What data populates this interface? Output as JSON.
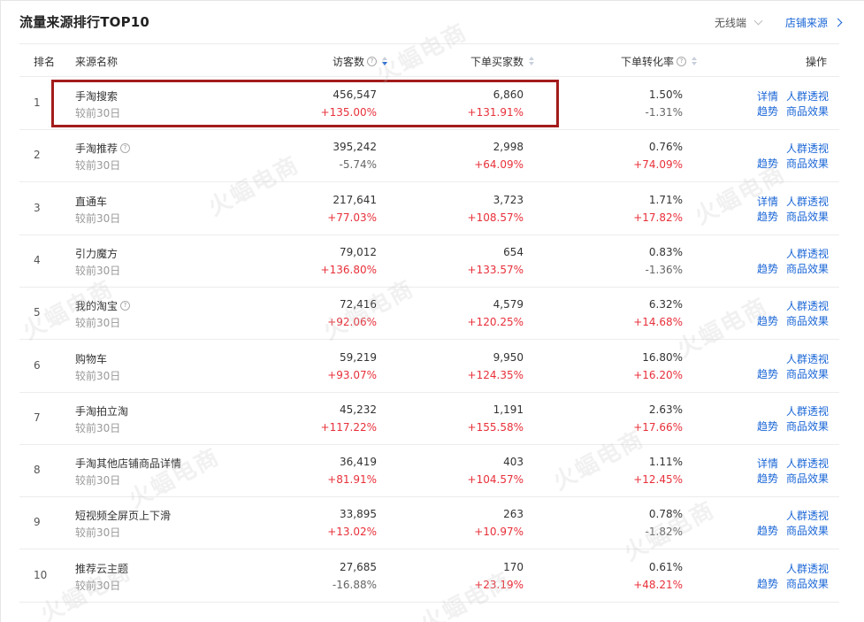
{
  "header": {
    "title": "流量来源排行TOP10",
    "terminal_label": "无线端",
    "shop_source_label": "店铺来源"
  },
  "columns": {
    "rank": "排名",
    "source": "来源名称",
    "visitors": "访客数",
    "buyers": "下单买家数",
    "conversion": "下单转化率",
    "actions": "操作"
  },
  "rows": [
    {
      "rank": "1",
      "name": "手淘搜索",
      "sub": "较前30日",
      "visitors": "456,547",
      "visitors_change": "+135.00%",
      "buyers": "6,860",
      "buyers_change": "+131.91%",
      "conv": "1.50%",
      "conv_change": "-1.31%",
      "a1": "详情",
      "a2": "人群透视",
      "a3": "趋势",
      "a4": "商品效果"
    },
    {
      "rank": "2",
      "name": "手淘推荐",
      "sub": "较前30日",
      "visitors": "395,242",
      "visitors_change": "-5.74%",
      "buyers": "2,998",
      "buyers_change": "+64.09%",
      "conv": "0.76%",
      "conv_change": "+74.09%",
      "a1": "",
      "a2": "人群透视",
      "a3": "趋势",
      "a4": "商品效果"
    },
    {
      "rank": "3",
      "name": "直通车",
      "sub": "较前30日",
      "visitors": "217,641",
      "visitors_change": "+77.03%",
      "buyers": "3,723",
      "buyers_change": "+108.57%",
      "conv": "1.71%",
      "conv_change": "+17.82%",
      "a1": "详情",
      "a2": "人群透视",
      "a3": "趋势",
      "a4": "商品效果"
    },
    {
      "rank": "4",
      "name": "引力魔方",
      "sub": "较前30日",
      "visitors": "79,012",
      "visitors_change": "+136.80%",
      "buyers": "654",
      "buyers_change": "+133.57%",
      "conv": "0.83%",
      "conv_change": "-1.36%",
      "a1": "",
      "a2": "人群透视",
      "a3": "趋势",
      "a4": "商品效果"
    },
    {
      "rank": "5",
      "name": "我的淘宝",
      "sub": "较前30日",
      "visitors": "72,416",
      "visitors_change": "+92.06%",
      "buyers": "4,579",
      "buyers_change": "+120.25%",
      "conv": "6.32%",
      "conv_change": "+14.68%",
      "a1": "",
      "a2": "人群透视",
      "a3": "趋势",
      "a4": "商品效果"
    },
    {
      "rank": "6",
      "name": "购物车",
      "sub": "较前30日",
      "visitors": "59,219",
      "visitors_change": "+93.07%",
      "buyers": "9,950",
      "buyers_change": "+124.35%",
      "conv": "16.80%",
      "conv_change": "+16.20%",
      "a1": "",
      "a2": "人群透视",
      "a3": "趋势",
      "a4": "商品效果"
    },
    {
      "rank": "7",
      "name": "手淘拍立淘",
      "sub": "较前30日",
      "visitors": "45,232",
      "visitors_change": "+117.22%",
      "buyers": "1,191",
      "buyers_change": "+155.58%",
      "conv": "2.63%",
      "conv_change": "+17.66%",
      "a1": "",
      "a2": "人群透视",
      "a3": "趋势",
      "a4": "商品效果"
    },
    {
      "rank": "8",
      "name": "手淘其他店铺商品详情",
      "sub": "较前30日",
      "visitors": "36,419",
      "visitors_change": "+81.91%",
      "buyers": "403",
      "buyers_change": "+104.57%",
      "conv": "1.11%",
      "conv_change": "+12.45%",
      "a1": "详情",
      "a2": "人群透视",
      "a3": "趋势",
      "a4": "商品效果"
    },
    {
      "rank": "9",
      "name": "短视频全屏页上下滑",
      "sub": "较前30日",
      "visitors": "33,895",
      "visitors_change": "+13.02%",
      "buyers": "263",
      "buyers_change": "+10.97%",
      "conv": "0.78%",
      "conv_change": "-1.82%",
      "a1": "",
      "a2": "人群透视",
      "a3": "趋势",
      "a4": "商品效果"
    },
    {
      "rank": "10",
      "name": "推荐云主题",
      "sub": "较前30日",
      "visitors": "27,685",
      "visitors_change": "-16.88%",
      "buyers": "170",
      "buyers_change": "+23.19%",
      "conv": "0.61%",
      "conv_change": "+48.21%",
      "a1": "",
      "a2": "人群透视",
      "a3": "趋势",
      "a4": "商品效果"
    }
  ],
  "help_rows": [
    "2",
    "5"
  ],
  "watermark": "火蝠电商",
  "colors": {
    "accent": "#1a66d6",
    "increase": "#e8303a",
    "neutral": "#666666",
    "highlight_border": "#a31c1c"
  }
}
